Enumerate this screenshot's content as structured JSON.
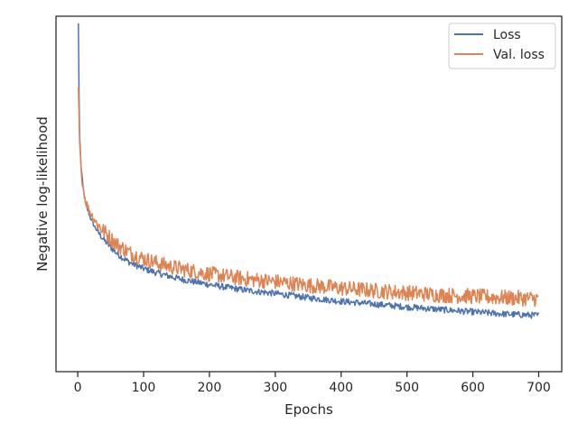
{
  "chart_data": {
    "type": "line",
    "title": "",
    "xlabel": "Epochs",
    "ylabel": "Negative log-likelihood",
    "xlim": [
      -33,
      735
    ],
    "ylim": [
      0,
      1
    ],
    "xticks": [
      0,
      100,
      200,
      300,
      400,
      500,
      600,
      700
    ],
    "xtick_labels": [
      "0",
      "100",
      "200",
      "300",
      "400",
      "500",
      "600",
      "700"
    ],
    "y_tick_labels_shown": false,
    "grid": false,
    "legend_position": "top-right",
    "series": [
      {
        "name": "Loss",
        "color": "#4c72b0",
        "x": [
          1,
          2,
          3,
          5,
          8,
          12,
          16,
          20,
          25,
          30,
          40,
          50,
          60,
          70,
          80,
          100,
          120,
          140,
          160,
          180,
          200,
          230,
          260,
          300,
          350,
          400,
          450,
          500,
          550,
          600,
          650,
          700
        ],
        "y": [
          0.98,
          0.78,
          0.66,
          0.58,
          0.52,
          0.47,
          0.45,
          0.43,
          0.41,
          0.395,
          0.37,
          0.35,
          0.332,
          0.318,
          0.306,
          0.29,
          0.278,
          0.268,
          0.259,
          0.252,
          0.245,
          0.236,
          0.228,
          0.22,
          0.208,
          0.198,
          0.19,
          0.182,
          0.175,
          0.168,
          0.162,
          0.158
        ]
      },
      {
        "name": "Val. loss",
        "color": "#dd8452",
        "x": [
          1,
          2,
          3,
          5,
          8,
          12,
          16,
          20,
          25,
          30,
          40,
          50,
          60,
          70,
          80,
          100,
          120,
          140,
          160,
          180,
          200,
          230,
          260,
          300,
          350,
          400,
          450,
          500,
          550,
          600,
          650,
          700
        ],
        "y": [
          0.8,
          0.72,
          0.64,
          0.57,
          0.52,
          0.48,
          0.46,
          0.445,
          0.43,
          0.415,
          0.395,
          0.375,
          0.358,
          0.345,
          0.334,
          0.318,
          0.306,
          0.296,
          0.288,
          0.281,
          0.275,
          0.267,
          0.26,
          0.253,
          0.243,
          0.235,
          0.228,
          0.222,
          0.216,
          0.212,
          0.208,
          0.205
        ]
      }
    ]
  }
}
